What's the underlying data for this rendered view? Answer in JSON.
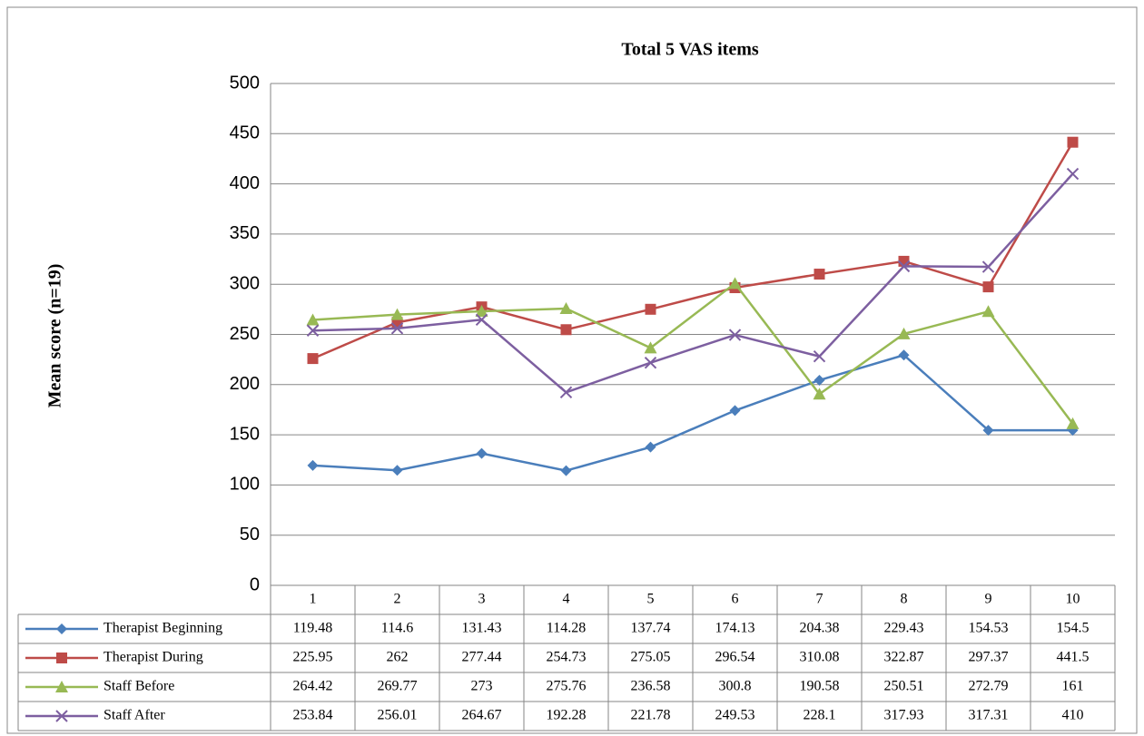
{
  "chart_data": {
    "type": "line",
    "title": "Total 5 VAS items",
    "y_label": "Mean score (n=19)",
    "categories": [
      "1",
      "2",
      "3",
      "4",
      "5",
      "6",
      "7",
      "8",
      "9",
      "10"
    ],
    "series": [
      {
        "name": "Therapist Beginning",
        "color": "#4a7ebb",
        "marker": "diamond",
        "values": [
          119.48,
          114.6,
          131.43,
          114.28,
          137.74,
          174.13,
          204.38,
          229.43,
          154.53,
          154.5
        ]
      },
      {
        "name": "Therapist During",
        "color": "#be4b48",
        "marker": "square",
        "values": [
          225.95,
          262,
          277.44,
          254.73,
          275.05,
          296.54,
          310.08,
          322.87,
          297.37,
          441.5
        ]
      },
      {
        "name": "Staff Before",
        "color": "#98b954",
        "marker": "triangle",
        "values": [
          264.42,
          269.77,
          273,
          275.76,
          236.58,
          300.8,
          190.58,
          250.51,
          272.79,
          161
        ]
      },
      {
        "name": "Staff After",
        "color": "#7d5fa0",
        "marker": "x",
        "values": [
          253.84,
          256.01,
          264.67,
          192.28,
          221.78,
          249.53,
          228.1,
          317.93,
          317.31,
          410
        ]
      }
    ],
    "ylim": [
      0,
      500
    ],
    "yticks": [
      0,
      50,
      100,
      150,
      200,
      250,
      300,
      350,
      400,
      450,
      500
    ],
    "grid": true
  }
}
